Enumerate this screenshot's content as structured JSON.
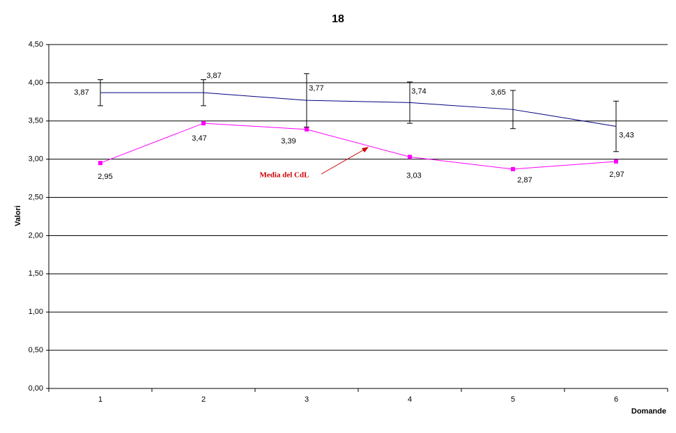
{
  "chart_data": {
    "type": "line",
    "title": "18",
    "x_label": "Domande",
    "y_label": "Valori",
    "categories": [
      "1",
      "2",
      "3",
      "4",
      "5",
      "6"
    ],
    "series": [
      {
        "color": "#000080",
        "values": [
          3.87,
          3.87,
          3.77,
          3.74,
          3.65,
          3.43
        ],
        "value_labels": [
          "3,87",
          "3,87",
          "3,77",
          "3,74",
          "3,65",
          "3,43"
        ],
        "errors": [
          0.17,
          0.17,
          0.35,
          0.27,
          0.25,
          0.33
        ]
      },
      {
        "color": "#ff00ff",
        "marker": "square",
        "values": [
          2.95,
          3.47,
          3.39,
          3.03,
          2.87,
          2.97
        ],
        "value_labels": [
          "2,95",
          "3,47",
          "3,39",
          "3,03",
          "2,87",
          "2,97"
        ]
      }
    ],
    "annotations": [
      {
        "text": "Media del CdL",
        "color": "#cc0000"
      }
    ],
    "ylim": [
      0,
      4.5
    ],
    "yticks": [
      {
        "value": 0,
        "label": "0,00"
      },
      {
        "value": 0.5,
        "label": "0,50"
      },
      {
        "value": 1,
        "label": "1,00"
      },
      {
        "value": 1.5,
        "label": "1,50"
      },
      {
        "value": 2,
        "label": "2,00"
      },
      {
        "value": 2.5,
        "label": "2,50"
      },
      {
        "value": 3,
        "label": "3,00"
      },
      {
        "value": 3.5,
        "label": "3,50"
      },
      {
        "value": 4,
        "label": "4,00"
      },
      {
        "value": 4.5,
        "label": "4,50"
      }
    ],
    "grid": true
  }
}
